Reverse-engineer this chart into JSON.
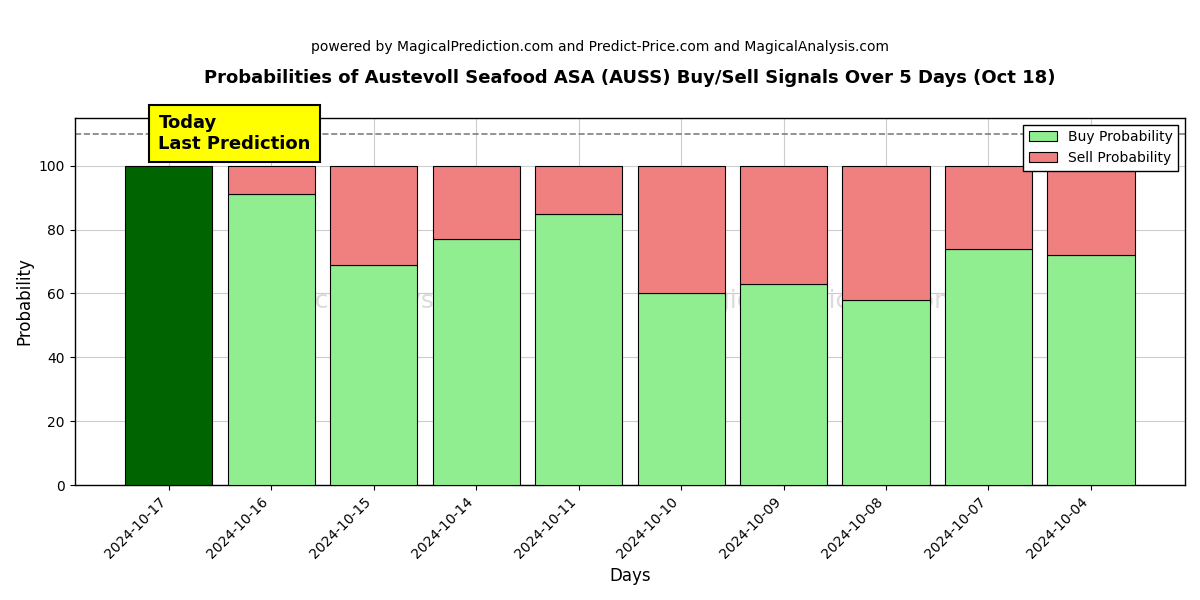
{
  "title": "Probabilities of Austevoll Seafood ASA (AUSS) Buy/Sell Signals Over 5 Days (Oct 18)",
  "subtitle": "powered by MagicalPrediction.com and Predict-Price.com and MagicalAnalysis.com",
  "xlabel": "Days",
  "ylabel": "Probability",
  "categories": [
    "2024-10-17",
    "2024-10-16",
    "2024-10-15",
    "2024-10-14",
    "2024-10-11",
    "2024-10-10",
    "2024-10-09",
    "2024-10-08",
    "2024-10-07",
    "2024-10-04"
  ],
  "buy_values": [
    100,
    91,
    69,
    77,
    85,
    60,
    63,
    58,
    74,
    72
  ],
  "sell_values": [
    0,
    9,
    31,
    23,
    15,
    40,
    37,
    42,
    26,
    28
  ],
  "today_bar_color": "#006400",
  "buy_bar_color": "#90EE90",
  "sell_bar_color": "#F08080",
  "today_annotation": "Today\nLast Prediction",
  "annotation_bg_color": "#FFFF00",
  "dashed_line_y": 110,
  "ylim": [
    0,
    115
  ],
  "yticks": [
    0,
    20,
    40,
    60,
    80,
    100
  ],
  "grid_color": "#cccccc",
  "legend_buy_label": "Buy Probability",
  "legend_sell_label": "Sell Probability",
  "figsize": [
    12,
    6
  ],
  "dpi": 100
}
